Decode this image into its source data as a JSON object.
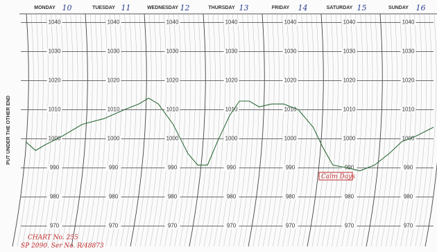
{
  "chart_data": {
    "type": "line",
    "days": [
      "MONDAY",
      "TUESDAY",
      "WEDNESDAY",
      "THURSDAY",
      "FRIDAY",
      "SATURDAY",
      "SUNDAY"
    ],
    "dates": [
      "10",
      "11",
      "12",
      "13",
      "14",
      "15",
      "16"
    ],
    "side_label": "PUT UNDER THE OTHER END",
    "chart_number": "CHART No. 255",
    "notes": [
      "SP 2090. Ser No. R/48873",
      "Calm Days"
    ],
    "x": [
      2,
      6,
      10,
      17,
      25,
      34,
      42,
      48,
      52,
      56,
      62,
      68,
      72,
      76,
      80,
      85,
      89,
      93,
      97,
      102,
      107,
      113,
      119,
      123,
      127,
      133,
      138,
      144,
      150,
      155,
      161,
      168
    ],
    "values": [
      999,
      996,
      998,
      1001,
      1005,
      1007,
      1010,
      1012,
      1014,
      1012,
      1005,
      995,
      991,
      991,
      999,
      1008,
      1013,
      1013,
      1011,
      1012,
      1012,
      1010,
      1004,
      997,
      991,
      990,
      989,
      991,
      995,
      999,
      1001,
      1004
    ],
    "color": "#2e6b3a",
    "xlim": [
      0,
      168
    ],
    "ylim": [
      963,
      1043
    ],
    "yticks": [
      1040,
      1030,
      1020,
      1010,
      1000,
      990,
      980,
      970
    ],
    "grid": true
  }
}
